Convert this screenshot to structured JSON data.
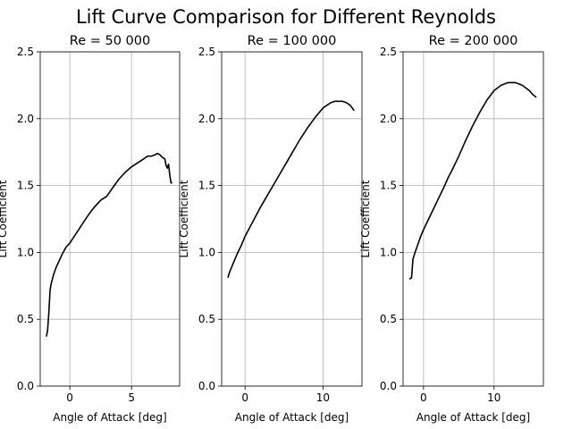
{
  "title": "Lift Curve Comparison for Different Reynolds",
  "chart_data": [
    {
      "type": "line",
      "title": "Re = 50 000",
      "xlabel": "Angle of Attack [deg]",
      "ylabel": "Lift Coefficient",
      "xlim": [
        -2.4,
        8.9
      ],
      "ylim": [
        0,
        2.5
      ],
      "xticks": [
        0,
        5
      ],
      "yticks": [
        0.0,
        0.5,
        1.0,
        1.5,
        2.0,
        2.5
      ],
      "grid": true,
      "line_color": "#000000",
      "series": [
        {
          "x": [
            -1.9,
            -1.8,
            -1.7,
            -1.6,
            -1.5,
            -1.3,
            -1.1,
            -0.9,
            -0.6,
            -0.3,
            0.0,
            0.5,
            1.0,
            1.5,
            2.0,
            2.5,
            3.0,
            3.3,
            3.6,
            4.0,
            4.5,
            5.0,
            5.5,
            6.0,
            6.3,
            6.6,
            6.9,
            7.1,
            7.3,
            7.5,
            7.7,
            7.8,
            7.9,
            8.0,
            8.1,
            8.2,
            8.3
          ],
          "values": [
            0.37,
            0.42,
            0.55,
            0.72,
            0.77,
            0.84,
            0.89,
            0.93,
            0.99,
            1.04,
            1.07,
            1.14,
            1.21,
            1.28,
            1.34,
            1.39,
            1.42,
            1.46,
            1.5,
            1.55,
            1.6,
            1.64,
            1.67,
            1.7,
            1.72,
            1.72,
            1.73,
            1.74,
            1.73,
            1.71,
            1.7,
            1.65,
            1.63,
            1.66,
            1.58,
            1.52,
            1.52
          ]
        }
      ]
    },
    {
      "type": "line",
      "title": "Re = 100 000",
      "xlabel": "Angle of Attack [deg]",
      "ylabel": "Lift Coefficient",
      "xlim": [
        -3.0,
        15.0
      ],
      "ylim": [
        0,
        2.5
      ],
      "xticks": [
        0,
        10
      ],
      "yticks": [
        0.0,
        0.5,
        1.0,
        1.5,
        2.0,
        2.5
      ],
      "grid": true,
      "line_color": "#000000",
      "series": [
        {
          "x": [
            -2.2,
            -2.0,
            -1.5,
            -1.0,
            -0.5,
            0.0,
            1.0,
            2.0,
            3.0,
            3.5,
            4.0,
            5.0,
            6.0,
            7.0,
            8.0,
            9.0,
            10.0,
            10.5,
            11.0,
            11.5,
            12.0,
            12.5,
            13.0,
            13.5,
            14.0
          ],
          "values": [
            0.81,
            0.85,
            0.92,
            0.99,
            1.05,
            1.12,
            1.23,
            1.34,
            1.44,
            1.49,
            1.54,
            1.64,
            1.74,
            1.84,
            1.93,
            2.01,
            2.08,
            2.1,
            2.12,
            2.13,
            2.13,
            2.13,
            2.12,
            2.1,
            2.06
          ]
        }
      ]
    },
    {
      "type": "line",
      "title": "Re = 200 000",
      "xlabel": "Angle of Attack [deg]",
      "ylabel": "Lift Coefficient",
      "xlim": [
        -2.9,
        17.0
      ],
      "ylim": [
        0,
        2.5
      ],
      "xticks": [
        0,
        10
      ],
      "yticks": [
        0.0,
        0.5,
        1.0,
        1.5,
        2.0,
        2.5
      ],
      "grid": true,
      "line_color": "#000000",
      "series": [
        {
          "x": [
            -2.0,
            -1.7,
            -1.5,
            -1.2,
            -0.8,
            -0.4,
            0.0,
            1.0,
            2.0,
            3.0,
            3.5,
            4.0,
            5.0,
            6.0,
            7.0,
            8.0,
            9.0,
            10.0,
            11.0,
            12.0,
            13.0,
            14.0,
            15.0,
            15.5,
            16.0
          ],
          "values": [
            0.8,
            0.81,
            0.95,
            1.0,
            1.06,
            1.12,
            1.17,
            1.28,
            1.39,
            1.5,
            1.56,
            1.61,
            1.72,
            1.84,
            1.95,
            2.05,
            2.14,
            2.21,
            2.25,
            2.27,
            2.27,
            2.25,
            2.21,
            2.18,
            2.16
          ]
        }
      ]
    }
  ]
}
